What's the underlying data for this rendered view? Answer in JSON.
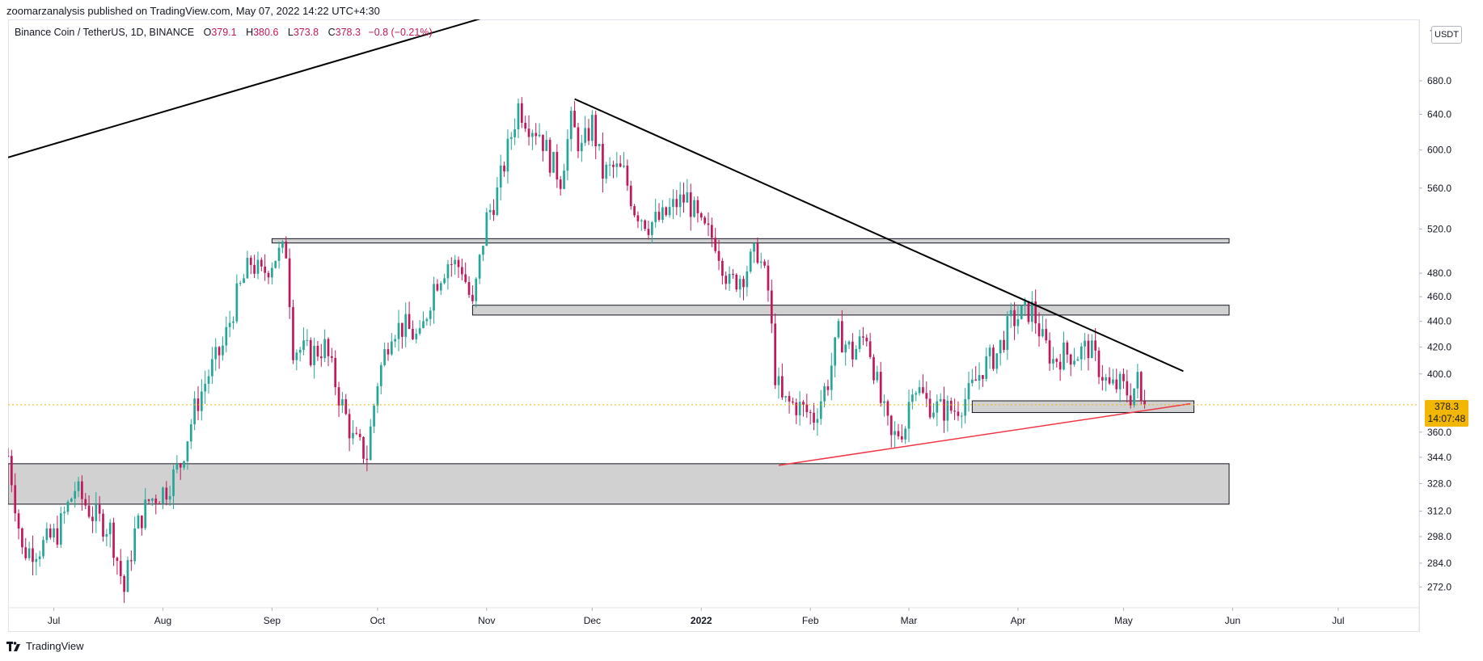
{
  "header": {
    "published": "zoomarzanalysis published on TradingView.com, May 07, 2022 14:22 UTC+4:30"
  },
  "legend": {
    "symbol": "Binance Coin / TetherUS, 1D, BINANCE",
    "open_label": "O",
    "open": "379.1",
    "high_label": "H",
    "high": "380.6",
    "low_label": "L",
    "low": "373.8",
    "close_label": "C",
    "close": "378.3",
    "change": "−0.8 (−0.21%)"
  },
  "price_scale": {
    "currency": "USDT",
    "unit_prefix": "7",
    "last_price": "378.3",
    "countdown": "14:07:48"
  },
  "footer": {
    "brand": "TradingView"
  },
  "colors": {
    "up": "#26a69a",
    "down": "#c2185b",
    "trend": "#000000",
    "support_line": "#f23645",
    "zone_fill": "#d1d1d1",
    "last_price": "#f2b705"
  },
  "chart_data": {
    "type": "candlestick",
    "symbol": "BNBUSDT",
    "interval": "1D",
    "y_scale": "log",
    "ylim": [
      262,
      760
    ],
    "xlim": [
      "2021-06-18",
      "2022-07-24"
    ],
    "y_ticks": [
      272,
      284,
      298,
      312,
      328,
      344,
      360,
      400,
      420,
      440,
      460,
      480,
      520,
      560,
      600,
      640,
      680
    ],
    "x_ticks": [
      {
        "date": "2021-07-01",
        "label": "Jul"
      },
      {
        "date": "2021-08-01",
        "label": "Aug"
      },
      {
        "date": "2021-09-01",
        "label": "Sep"
      },
      {
        "date": "2021-10-01",
        "label": "Oct"
      },
      {
        "date": "2021-11-01",
        "label": "Nov"
      },
      {
        "date": "2021-12-01",
        "label": "Dec"
      },
      {
        "date": "2022-01-01",
        "label": "2022"
      },
      {
        "date": "2022-02-01",
        "label": "Feb"
      },
      {
        "date": "2022-03-01",
        "label": "Mar"
      },
      {
        "date": "2022-04-01",
        "label": "Apr"
      },
      {
        "date": "2022-05-01",
        "label": "May"
      },
      {
        "date": "2022-06-01",
        "label": "Jun"
      },
      {
        "date": "2022-07-01",
        "label": "Jul"
      }
    ],
    "closes": [
      {
        "date": "2021-06-18",
        "close": 345
      },
      {
        "date": "2021-06-22",
        "close": 290
      },
      {
        "date": "2021-06-27",
        "close": 292
      },
      {
        "date": "2021-07-02",
        "close": 300
      },
      {
        "date": "2021-07-07",
        "close": 325
      },
      {
        "date": "2021-07-12",
        "close": 310
      },
      {
        "date": "2021-07-17",
        "close": 302
      },
      {
        "date": "2021-07-21",
        "close": 270
      },
      {
        "date": "2021-07-24",
        "close": 300
      },
      {
        "date": "2021-07-28",
        "close": 318
      },
      {
        "date": "2021-08-02",
        "close": 325
      },
      {
        "date": "2021-08-06",
        "close": 340
      },
      {
        "date": "2021-08-10",
        "close": 375
      },
      {
        "date": "2021-08-14",
        "close": 400
      },
      {
        "date": "2021-08-18",
        "close": 420
      },
      {
        "date": "2021-08-22",
        "close": 460
      },
      {
        "date": "2021-08-26",
        "close": 490
      },
      {
        "date": "2021-08-29",
        "close": 478
      },
      {
        "date": "2021-09-02",
        "close": 495
      },
      {
        "date": "2021-09-05",
        "close": 500
      },
      {
        "date": "2021-09-07",
        "close": 420
      },
      {
        "date": "2021-09-12",
        "close": 415
      },
      {
        "date": "2021-09-16",
        "close": 420
      },
      {
        "date": "2021-09-20",
        "close": 385
      },
      {
        "date": "2021-09-24",
        "close": 355
      },
      {
        "date": "2021-09-28",
        "close": 345
      },
      {
        "date": "2021-10-01",
        "close": 395
      },
      {
        "date": "2021-10-05",
        "close": 435
      },
      {
        "date": "2021-10-09",
        "close": 435
      },
      {
        "date": "2021-10-13",
        "close": 425
      },
      {
        "date": "2021-10-17",
        "close": 470
      },
      {
        "date": "2021-10-21",
        "close": 490
      },
      {
        "date": "2021-10-25",
        "close": 485
      },
      {
        "date": "2021-10-28",
        "close": 450
      },
      {
        "date": "2021-11-01",
        "close": 530
      },
      {
        "date": "2021-11-04",
        "close": 555
      },
      {
        "date": "2021-11-07",
        "close": 600
      },
      {
        "date": "2021-11-10",
        "close": 650
      },
      {
        "date": "2021-11-13",
        "close": 630
      },
      {
        "date": "2021-11-16",
        "close": 620
      },
      {
        "date": "2021-11-19",
        "close": 590
      },
      {
        "date": "2021-11-22",
        "close": 570
      },
      {
        "date": "2021-11-25",
        "close": 630
      },
      {
        "date": "2021-11-28",
        "close": 600
      },
      {
        "date": "2021-12-01",
        "close": 630
      },
      {
        "date": "2021-12-04",
        "close": 575
      },
      {
        "date": "2021-12-07",
        "close": 580
      },
      {
        "date": "2021-12-10",
        "close": 575
      },
      {
        "date": "2021-12-13",
        "close": 540
      },
      {
        "date": "2021-12-17",
        "close": 525
      },
      {
        "date": "2021-12-21",
        "close": 530
      },
      {
        "date": "2021-12-25",
        "close": 545
      },
      {
        "date": "2021-12-28",
        "close": 550
      },
      {
        "date": "2022-01-01",
        "close": 520
      },
      {
        "date": "2022-01-05",
        "close": 510
      },
      {
        "date": "2022-01-09",
        "close": 470
      },
      {
        "date": "2022-01-13",
        "close": 480
      },
      {
        "date": "2022-01-17",
        "close": 500
      },
      {
        "date": "2022-01-20",
        "close": 465
      },
      {
        "date": "2022-01-22",
        "close": 400
      },
      {
        "date": "2022-01-24",
        "close": 380
      },
      {
        "date": "2022-01-28",
        "close": 378
      },
      {
        "date": "2022-02-02",
        "close": 370
      },
      {
        "date": "2022-02-06",
        "close": 395
      },
      {
        "date": "2022-02-09",
        "close": 430
      },
      {
        "date": "2022-02-13",
        "close": 415
      },
      {
        "date": "2022-02-17",
        "close": 430
      },
      {
        "date": "2022-02-21",
        "close": 380
      },
      {
        "date": "2022-02-24",
        "close": 355
      },
      {
        "date": "2022-02-28",
        "close": 365
      },
      {
        "date": "2022-03-02",
        "close": 395
      },
      {
        "date": "2022-03-06",
        "close": 380
      },
      {
        "date": "2022-03-10",
        "close": 375
      },
      {
        "date": "2022-03-14",
        "close": 375
      },
      {
        "date": "2022-03-18",
        "close": 385
      },
      {
        "date": "2022-03-22",
        "close": 405
      },
      {
        "date": "2022-03-26",
        "close": 415
      },
      {
        "date": "2022-03-30",
        "close": 440
      },
      {
        "date": "2022-04-02",
        "close": 445
      },
      {
        "date": "2022-04-05",
        "close": 450
      },
      {
        "date": "2022-04-08",
        "close": 425
      },
      {
        "date": "2022-04-11",
        "close": 410
      },
      {
        "date": "2022-04-14",
        "close": 415
      },
      {
        "date": "2022-04-18",
        "close": 415
      },
      {
        "date": "2022-04-21",
        "close": 420
      },
      {
        "date": "2022-04-24",
        "close": 405
      },
      {
        "date": "2022-04-27",
        "close": 390
      },
      {
        "date": "2022-04-30",
        "close": 392
      },
      {
        "date": "2022-05-03",
        "close": 385
      },
      {
        "date": "2022-05-05",
        "close": 395
      },
      {
        "date": "2022-05-06",
        "close": 379
      },
      {
        "date": "2022-05-07",
        "close": 378.3
      }
    ],
    "drawings": {
      "resistance_zones": [
        {
          "from": "2021-09-01",
          "to": "2022-05-31",
          "low": 507,
          "high": 511
        },
        {
          "from": "2021-10-28",
          "to": "2022-05-31",
          "low": 445,
          "high": 453
        },
        {
          "from": "2021-06-18",
          "to": "2022-05-31",
          "low": 316,
          "high": 340
        },
        {
          "from": "2022-03-19",
          "to": "2022-05-21",
          "low": 373,
          "high": 381
        }
      ],
      "trendlines": [
        {
          "from": "2021-06-18",
          "to": "2021-11-02",
          "y1": 592,
          "y2": 765,
          "color": "trend"
        },
        {
          "from": "2021-11-26",
          "to": "2022-05-18",
          "y1": 658,
          "y2": 402,
          "color": "trend"
        },
        {
          "from": "2022-01-23",
          "to": "2022-05-20",
          "y1": 339,
          "y2": 379,
          "color": "support_line"
        }
      ],
      "last_price_line": 378.3
    }
  }
}
